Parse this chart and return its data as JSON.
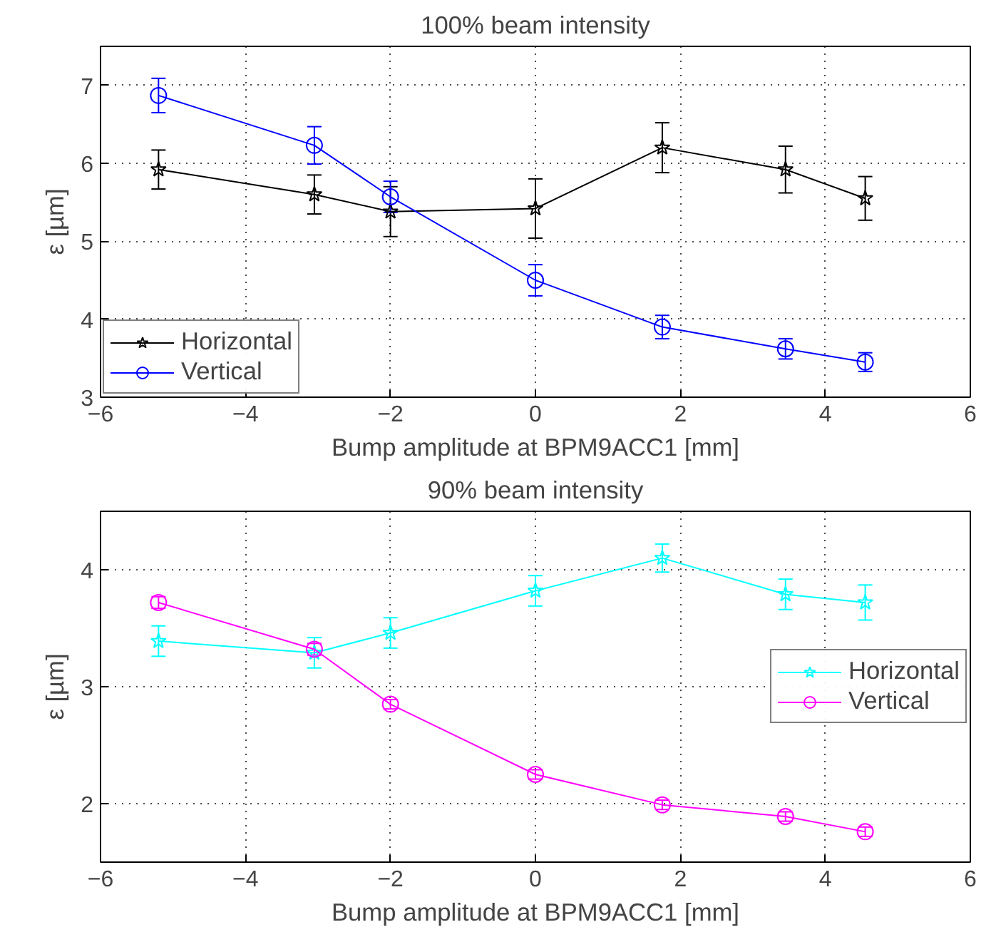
{
  "chart_data": [
    {
      "type": "line",
      "title": "100% beam intensity",
      "xlabel": "Bump amplitude at BPM9ACC1 [mm]",
      "ylabel": "ε [µm]",
      "x": [
        -5.2,
        -3.05,
        -2.0,
        0,
        1.75,
        3.45,
        4.55
      ],
      "series": [
        {
          "name": "Horizontal",
          "color": "#000000",
          "marker": "star",
          "values": [
            5.92,
            5.6,
            5.38,
            5.42,
            6.2,
            5.92,
            5.55
          ],
          "errors": [
            0.25,
            0.25,
            0.32,
            0.38,
            0.32,
            0.3,
            0.28
          ]
        },
        {
          "name": "Vertical",
          "color": "#0000ff",
          "marker": "circle",
          "values": [
            6.87,
            6.23,
            5.57,
            4.5,
            3.9,
            3.62,
            3.45
          ],
          "errors": [
            0.22,
            0.24,
            0.2,
            0.2,
            0.15,
            0.13,
            0.12
          ]
        }
      ],
      "xlim": [
        -6,
        6
      ],
      "xticks": [
        -6,
        -4,
        -2,
        0,
        2,
        4,
        6
      ],
      "ylim": [
        3,
        7.5
      ],
      "yticks": [
        3,
        4,
        5,
        6,
        7
      ],
      "grid": true,
      "legend": "bottom left",
      "line_style": "solid"
    },
    {
      "type": "line",
      "title": "90% beam intensity",
      "xlabel": "Bump amplitude at BPM9ACC1 [mm]",
      "ylabel": "ε [µm]",
      "x": [
        -5.2,
        -3.05,
        -2.0,
        0,
        1.75,
        3.45,
        4.55
      ],
      "series": [
        {
          "name": "Horizontal",
          "color": "#00ffff",
          "marker": "star",
          "values": [
            3.39,
            3.29,
            3.46,
            3.82,
            4.1,
            3.79,
            3.72
          ],
          "errors": [
            0.13,
            0.13,
            0.13,
            0.13,
            0.12,
            0.13,
            0.15
          ]
        },
        {
          "name": "Vertical",
          "color": "#ff00ff",
          "marker": "circle",
          "values": [
            3.72,
            3.32,
            2.85,
            2.25,
            1.99,
            1.89,
            1.76
          ],
          "errors": [
            0.05,
            0.05,
            0.04,
            0.04,
            0.04,
            0.04,
            0.04
          ]
        }
      ],
      "xlim": [
        -6,
        6
      ],
      "xticks": [
        -6,
        -4,
        -2,
        0,
        2,
        4,
        6
      ],
      "ylim": [
        1.5,
        4.5
      ],
      "yticks": [
        2,
        3,
        4
      ],
      "grid": true,
      "legend": "right",
      "line_style": "solid"
    }
  ]
}
